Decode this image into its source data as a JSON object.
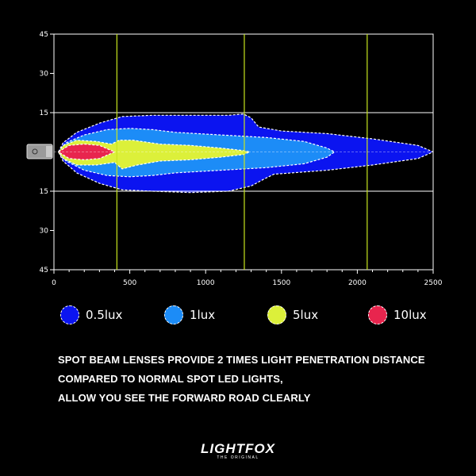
{
  "chart_data": {
    "type": "area",
    "title": "",
    "xlabel": "",
    "ylabel": "",
    "xlim": [
      0,
      2500
    ],
    "ylim": [
      -45,
      45
    ],
    "x_ticks": [
      0,
      500,
      1000,
      1500,
      2000,
      2500
    ],
    "x_tick_labels": [
      "0",
      "500",
      "1000",
      "1500",
      "2000",
      "2500"
    ],
    "y_ticks": [
      45,
      30,
      15,
      -15,
      -30,
      -45
    ],
    "y_tick_labels": [
      "45",
      "30",
      "15",
      "15",
      "30",
      "45"
    ],
    "reference_lines_x": [
      415,
      1255,
      2065
    ],
    "reference_lines_y": [
      15,
      -15
    ],
    "series": [
      {
        "name": "0.5lux",
        "color": "#0b14f0",
        "upper": [
          [
            30,
            0
          ],
          [
            60,
            3.5
          ],
          [
            150,
            7.5
          ],
          [
            300,
            11
          ],
          [
            450,
            13.5
          ],
          [
            650,
            14
          ],
          [
            900,
            14
          ],
          [
            1150,
            14
          ],
          [
            1250,
            14.5
          ],
          [
            1300,
            13
          ],
          [
            1350,
            9.5
          ],
          [
            1500,
            8
          ],
          [
            1800,
            7
          ],
          [
            2100,
            5
          ],
          [
            2400,
            2.5
          ],
          [
            2500,
            0
          ]
        ],
        "lower": [
          [
            30,
            0
          ],
          [
            60,
            -3.5
          ],
          [
            150,
            -8
          ],
          [
            300,
            -12
          ],
          [
            450,
            -14.5
          ],
          [
            650,
            -15
          ],
          [
            900,
            -15.5
          ],
          [
            1150,
            -15
          ],
          [
            1300,
            -13
          ],
          [
            1380,
            -10.5
          ],
          [
            1450,
            -8.5
          ],
          [
            1800,
            -7
          ],
          [
            2100,
            -5
          ],
          [
            2400,
            -2.5
          ],
          [
            2500,
            0
          ]
        ]
      },
      {
        "name": "1lux",
        "color": "#1c8cf7",
        "upper": [
          [
            30,
            0
          ],
          [
            80,
            3.5
          ],
          [
            200,
            6.5
          ],
          [
            350,
            8.5
          ],
          [
            500,
            9
          ],
          [
            650,
            8.5
          ],
          [
            800,
            7.5
          ],
          [
            1100,
            6.5
          ],
          [
            1400,
            5.5
          ],
          [
            1650,
            4
          ],
          [
            1800,
            1.5
          ],
          [
            1850,
            0
          ]
        ],
        "lower": [
          [
            30,
            0
          ],
          [
            80,
            -3.5
          ],
          [
            200,
            -7
          ],
          [
            350,
            -9
          ],
          [
            500,
            -9.5
          ],
          [
            650,
            -9
          ],
          [
            800,
            -8
          ],
          [
            1100,
            -7
          ],
          [
            1400,
            -6
          ],
          [
            1650,
            -4.5
          ],
          [
            1800,
            -2
          ],
          [
            1850,
            0
          ]
        ]
      },
      {
        "name": "5lux",
        "color": "#dcf03a",
        "upper": [
          [
            30,
            0
          ],
          [
            60,
            2.5
          ],
          [
            150,
            4.5
          ],
          [
            280,
            4
          ],
          [
            380,
            3
          ],
          [
            430,
            4.5
          ],
          [
            520,
            4.5
          ],
          [
            700,
            3
          ],
          [
            900,
            2.5
          ],
          [
            1100,
            1.5
          ],
          [
            1250,
            0.5
          ],
          [
            1290,
            0
          ]
        ],
        "lower": [
          [
            30,
            0
          ],
          [
            60,
            -2.5
          ],
          [
            150,
            -5
          ],
          [
            280,
            -5
          ],
          [
            400,
            -4
          ],
          [
            450,
            -6.5
          ],
          [
            550,
            -5
          ],
          [
            700,
            -3.5
          ],
          [
            900,
            -3
          ],
          [
            1100,
            -2
          ],
          [
            1250,
            -1
          ],
          [
            1290,
            0
          ]
        ]
      },
      {
        "name": "10lux",
        "color": "#e8254e",
        "upper": [
          [
            30,
            0
          ],
          [
            100,
            2.5
          ],
          [
            200,
            3
          ],
          [
            300,
            2.5
          ],
          [
            360,
            1
          ],
          [
            400,
            0
          ]
        ],
        "lower": [
          [
            30,
            0
          ],
          [
            100,
            -2.5
          ],
          [
            200,
            -3
          ],
          [
            300,
            -2.5
          ],
          [
            360,
            -1
          ],
          [
            400,
            0
          ]
        ]
      }
    ]
  },
  "legend": [
    {
      "label": "0.5lux",
      "color": "#0b14f0"
    },
    {
      "label": "1lux",
      "color": "#1c8cf7"
    },
    {
      "label": "5lux",
      "color": "#dcf03a"
    },
    {
      "label": "10lux",
      "color": "#e8254e"
    }
  ],
  "caption": {
    "line1": "SPOT BEAM LENSES PROVIDE 2 TIMES LIGHT PENETRATION DISTANCE",
    "line2": "COMPARED TO NORMAL SPOT LED LIGHTS,",
    "line3": "ALLOW YOU SEE THE FORWARD ROAD CLEARLY"
  },
  "logo": {
    "main": "LIGHTFOX",
    "sub": "THE ORIGINAL"
  }
}
